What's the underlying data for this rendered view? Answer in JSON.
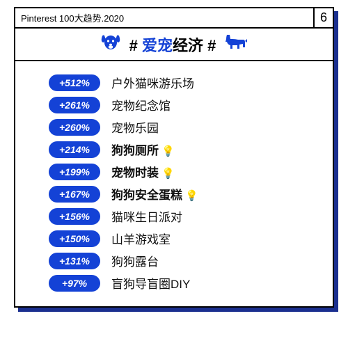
{
  "header": {
    "title": "Pinterest 100大趋势.2020",
    "page_number": "6"
  },
  "title_band": {
    "hash_left": "#",
    "hash_right": "#",
    "text_accent": "爱宠",
    "text_rest": "经济",
    "left_icon": "dog-face-icon",
    "right_icon": "corgi-icon",
    "accent_color": "#1442d6"
  },
  "colors": {
    "pill_bg": "#1442d6",
    "pill_text": "#ffffff",
    "border": "#000000",
    "shadow": "#1a2f8f",
    "bulb": "#f5b800",
    "background": "#ffffff"
  },
  "typography": {
    "title_fontsize": 22,
    "label_fontsize": 17,
    "pill_fontsize": 14,
    "header_fontsize": 13
  },
  "list": {
    "type": "ranked-list",
    "rows": [
      {
        "pct": "+512%",
        "label": "户外猫咪游乐场",
        "bold": false,
        "bulb": false
      },
      {
        "pct": "+261%",
        "label": "宠物纪念馆",
        "bold": false,
        "bulb": false
      },
      {
        "pct": "+260%",
        "label": "宠物乐园",
        "bold": false,
        "bulb": false
      },
      {
        "pct": "+214%",
        "label": "狗狗厕所",
        "bold": true,
        "bulb": true
      },
      {
        "pct": "+199%",
        "label": "宠物时装",
        "bold": true,
        "bulb": true
      },
      {
        "pct": "+167%",
        "label": "狗狗安全蛋糕",
        "bold": true,
        "bulb": true
      },
      {
        "pct": "+156%",
        "label": "猫咪生日派对",
        "bold": false,
        "bulb": false
      },
      {
        "pct": "+150%",
        "label": "山羊游戏室",
        "bold": false,
        "bulb": false
      },
      {
        "pct": "+131%",
        "label": "狗狗露台",
        "bold": false,
        "bulb": false
      },
      {
        "pct": "+97%",
        "label": "盲狗导盲圈DIY",
        "bold": false,
        "bulb": false
      }
    ]
  }
}
